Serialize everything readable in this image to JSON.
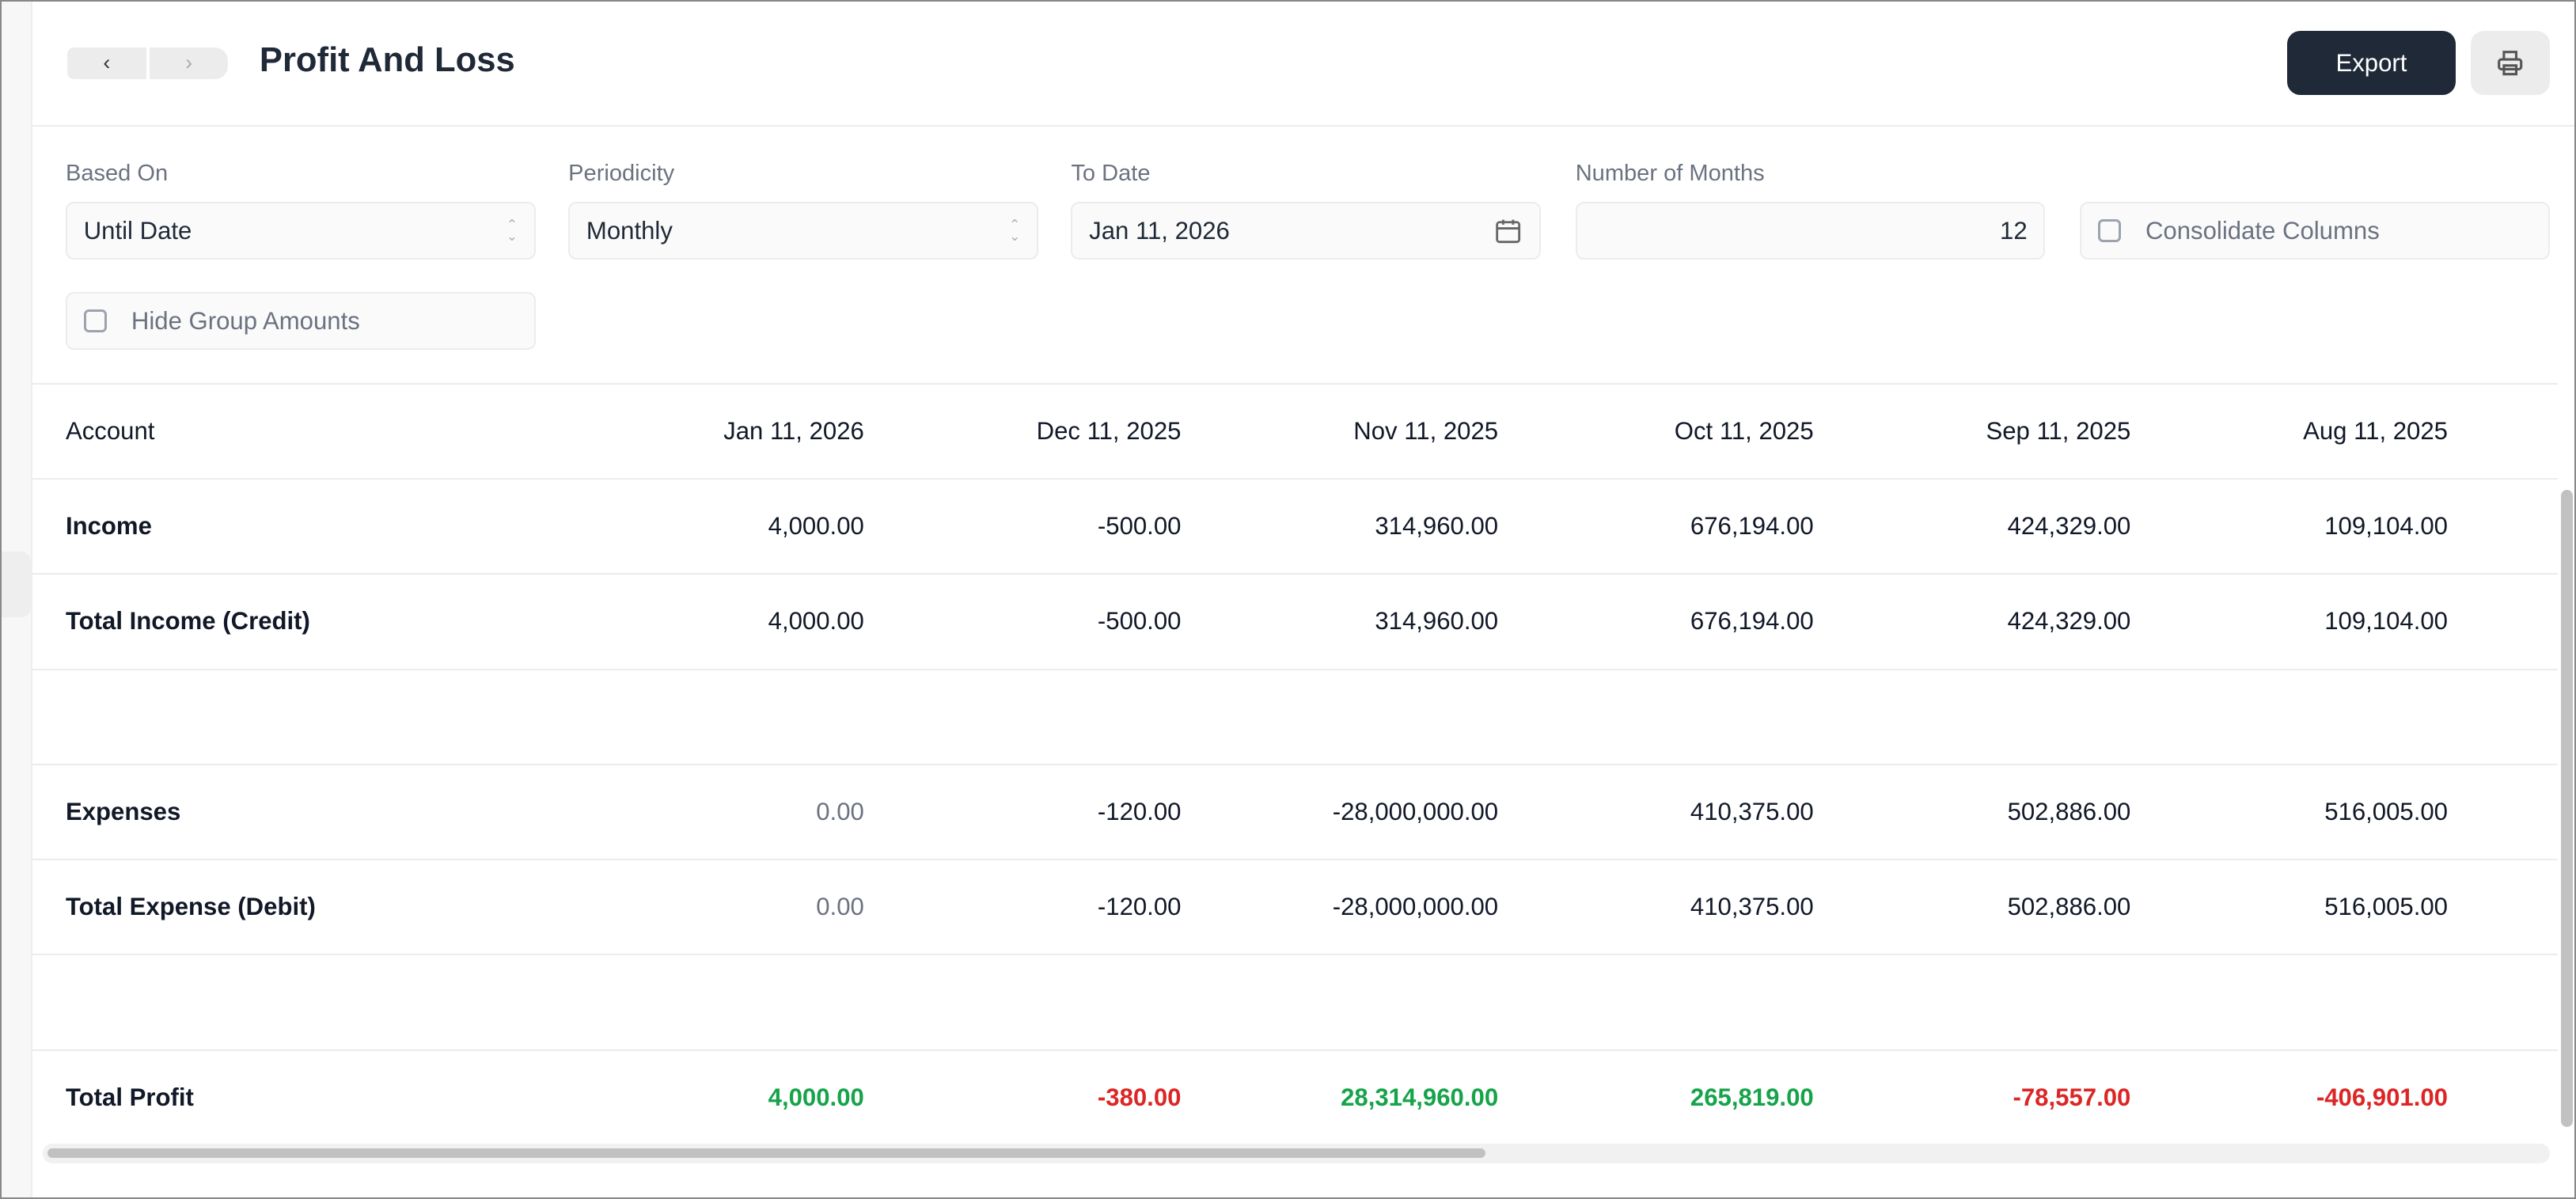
{
  "header": {
    "title": "Profit And Loss",
    "export_label": "Export"
  },
  "filters": {
    "based_on": {
      "label": "Based On",
      "value": "Until Date"
    },
    "periodicity": {
      "label": "Periodicity",
      "value": "Monthly"
    },
    "to_date": {
      "label": "To Date",
      "value": "Jan 11, 2026"
    },
    "months": {
      "label": "Number of Months",
      "value": "12"
    },
    "consolidate": {
      "label": "Consolidate Columns"
    },
    "hide_group": {
      "label": "Hide Group Amounts"
    }
  },
  "table": {
    "columns": [
      "Account",
      "Jan 11, 2026",
      "Dec 11, 2025",
      "Nov 11, 2025",
      "Oct 11, 2025",
      "Sep 11, 2025",
      "Aug 11, 2025"
    ],
    "rows": [
      {
        "account": "Income",
        "values": [
          "4,000.00",
          "-500.00",
          "314,960.00",
          "676,194.00",
          "424,329.00",
          "109,104.00"
        ]
      },
      {
        "account": "Total Income (Credit)",
        "values": [
          "4,000.00",
          "-500.00",
          "314,960.00",
          "676,194.00",
          "424,329.00",
          "109,104.00"
        ]
      },
      {
        "account": "",
        "values": [
          "",
          "",
          "",
          "",
          "",
          ""
        ]
      },
      {
        "account": "Expenses",
        "values": [
          "0.00",
          "-120.00",
          "-28,000,000.00",
          "410,375.00",
          "502,886.00",
          "516,005.00"
        ]
      },
      {
        "account": "Total Expense (Debit)",
        "values": [
          "0.00",
          "-120.00",
          "-28,000,000.00",
          "410,375.00",
          "502,886.00",
          "516,005.00"
        ]
      },
      {
        "account": "",
        "values": [
          "",
          "",
          "",
          "",
          "",
          ""
        ]
      },
      {
        "account": "Total Profit",
        "values": [
          "4,000.00",
          "-380.00",
          "28,314,960.00",
          "265,819.00",
          "-78,557.00",
          "-406,901.00"
        ]
      }
    ]
  },
  "colors": {
    "positive": "#16a34a",
    "negative": "#dc2626",
    "primary": "#1f2937"
  }
}
